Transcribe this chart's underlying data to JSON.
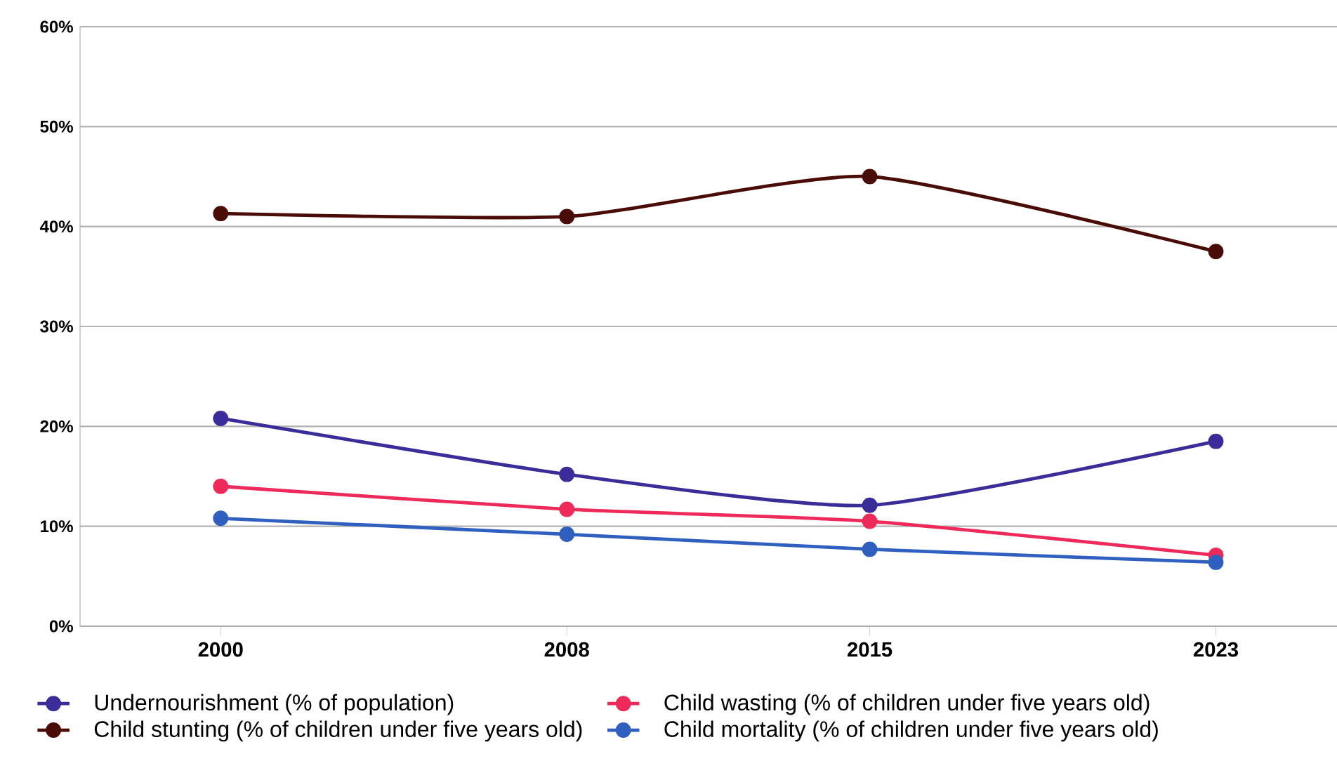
{
  "chart_data": {
    "type": "line",
    "x": [
      2000,
      2008,
      2015,
      2023
    ],
    "xlim": [
      1996.75,
      2025.8
    ],
    "xticks": [
      2000,
      2008,
      2015,
      2023
    ],
    "ylim": [
      0,
      60
    ],
    "yticks": [
      {
        "value": 0,
        "label": "0%"
      },
      {
        "value": 10,
        "label": "10%"
      },
      {
        "value": 20,
        "label": "20%"
      },
      {
        "value": 30,
        "label": "30%"
      },
      {
        "value": 40,
        "label": "40%"
      },
      {
        "value": 50,
        "label": "50%"
      },
      {
        "value": 60,
        "label": "60%"
      }
    ],
    "series": [
      {
        "name": "Undernourishment (% of population)",
        "color": "#3a2d9a",
        "values": [
          20.8,
          15.2,
          12.1,
          18.5
        ]
      },
      {
        "name": "Child wasting (% of children under five years old)",
        "color": "#ee2a5a",
        "values": [
          14.0,
          11.7,
          10.5,
          7.1
        ]
      },
      {
        "name": "Child stunting (% of children under five years old)",
        "color": "#4a0c06",
        "values": [
          41.3,
          41.0,
          45.0,
          37.5
        ]
      },
      {
        "name": "Child mortality (% of children under five years old)",
        "color": "#2f5fbf",
        "values": [
          10.8,
          9.2,
          7.7,
          6.4
        ]
      }
    ],
    "grid": "y",
    "legend": "bottom",
    "marker": "circle",
    "line_style": "solid"
  }
}
